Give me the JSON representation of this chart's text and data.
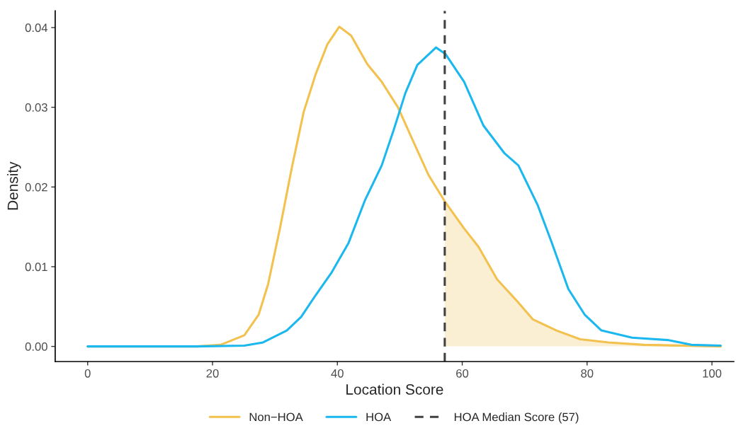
{
  "chart_data": {
    "type": "line",
    "xlabel": "Location Score",
    "ylabel": "Density",
    "xlim": [
      -5.2,
      103.5
    ],
    "ylim": [
      -0.0019,
      0.0421
    ],
    "xticks": [
      0,
      20,
      40,
      60,
      80,
      100
    ],
    "yticks": [
      {
        "value": 0,
        "label": "0.00"
      },
      {
        "value": 0.01,
        "label": "0.01"
      },
      {
        "value": 0.02,
        "label": "0.02"
      },
      {
        "value": 0.03,
        "label": "0.03"
      },
      {
        "value": 0.04,
        "label": "0.04"
      }
    ],
    "grid": false,
    "legend": "bottom",
    "line_style": "solid",
    "series": [
      {
        "type": "area",
        "color": "#faefd2",
        "x": [
          57.2,
          60.3,
          62.6,
          65.6,
          69.0,
          71.3,
          75.1,
          78.9,
          83.4,
          89.1,
          101.4
        ],
        "values": [
          0.0182,
          0.0148,
          0.0125,
          0.0084,
          0.0055,
          0.0034,
          0.002,
          0.0009,
          0.0005,
          0.0002,
          0
        ]
      },
      {
        "name": "Non−HOA",
        "color": "#f2c14e",
        "x": [
          0,
          17.5,
          21.3,
          25.1,
          27.4,
          28.9,
          30.8,
          32.7,
          34.6,
          36.5,
          38.4,
          40.3,
          42.2,
          44.8,
          47.1,
          49.7,
          52.4,
          54.6,
          57.2,
          60.3,
          62.6,
          65.6,
          69.0,
          71.3,
          75.1,
          78.9,
          83.4,
          89.1,
          101.4
        ],
        "values": [
          0,
          0,
          0.0002,
          0.0014,
          0.004,
          0.0078,
          0.0148,
          0.0224,
          0.0294,
          0.0341,
          0.0379,
          0.0401,
          0.039,
          0.0354,
          0.0332,
          0.03,
          0.0253,
          0.0215,
          0.0182,
          0.0148,
          0.0125,
          0.0084,
          0.0055,
          0.0034,
          0.002,
          0.0009,
          0.0005,
          0.0002,
          0
        ]
      },
      {
        "name": "HOA",
        "color": "#1ab8ee",
        "x": [
          0,
          17.5,
          25.1,
          28.1,
          31.9,
          34.2,
          36.5,
          39.1,
          41.8,
          44.4,
          47.1,
          49.0,
          50.9,
          52.8,
          55.8,
          57.3,
          60.3,
          63.4,
          66.8,
          69.0,
          72.1,
          74.3,
          77.0,
          79.6,
          82.3,
          87.2,
          92.9,
          96.7,
          101.4
        ],
        "values": [
          0,
          0,
          0.0001,
          0.0005,
          0.002,
          0.0037,
          0.0064,
          0.0093,
          0.013,
          0.0183,
          0.0227,
          0.0271,
          0.0318,
          0.0353,
          0.0375,
          0.0367,
          0.0332,
          0.0277,
          0.0242,
          0.0227,
          0.0177,
          0.0131,
          0.0072,
          0.004,
          0.002,
          0.0011,
          0.0008,
          0.0002,
          0.0001
        ]
      }
    ],
    "ref_lines": [
      {
        "axis": "x",
        "value": 57.2,
        "label": "HOA Median Score (57)",
        "color": "#404040",
        "line_style": "dashed"
      }
    ]
  }
}
